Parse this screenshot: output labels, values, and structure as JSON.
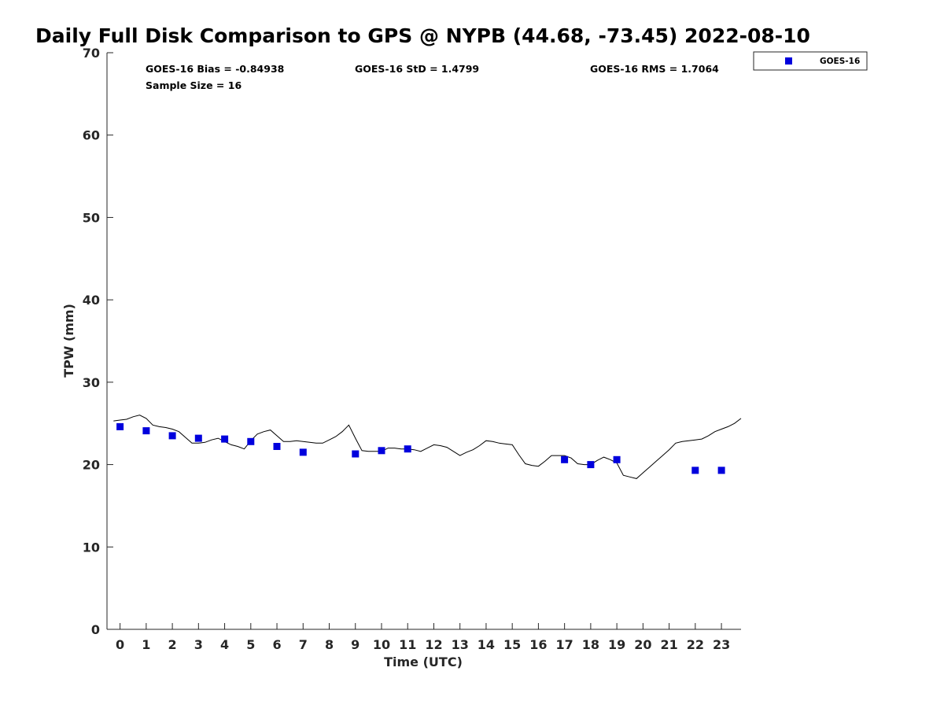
{
  "chart_data": {
    "type": "line",
    "title": "Daily Full Disk Comparison to GPS @ NYPB (44.68, -73.45) 2022-08-10",
    "xlabel": "Time (UTC)",
    "ylabel": "TPW (mm)",
    "xlim": [
      -0.5,
      23.75
    ],
    "ylim": [
      0,
      70
    ],
    "x_ticks": [
      "0",
      "1",
      "2",
      "3",
      "4",
      "5",
      "6",
      "7",
      "8",
      "9",
      "10",
      "11",
      "12",
      "13",
      "14",
      "15",
      "16",
      "17",
      "18",
      "19",
      "20",
      "21",
      "22",
      "23"
    ],
    "y_ticks": [
      "0",
      "10",
      "20",
      "30",
      "40",
      "50",
      "60",
      "70"
    ],
    "grid": false,
    "legend_position": "top-right, outside plot",
    "stats": {
      "bias": "GOES-16 Bias = -0.84938",
      "std": "GOES-16 StD = 1.4799",
      "rms": "GOES-16 RMS = 1.7064",
      "sample": "Sample Size = 16"
    },
    "legend": [
      {
        "label": "GOES-16",
        "marker": "square",
        "color": "#0000dd"
      }
    ],
    "series": [
      {
        "kind": "line",
        "color": "#000000",
        "x": [
          -0.25,
          0.0,
          0.25,
          0.5,
          0.75,
          1.0,
          1.25,
          1.5,
          1.75,
          2.0,
          2.25,
          2.5,
          2.75,
          3.0,
          3.25,
          3.5,
          3.75,
          4.0,
          4.25,
          4.5,
          4.75,
          5.0,
          5.25,
          5.5,
          5.75,
          6.0,
          6.25,
          6.5,
          6.75,
          7.0,
          7.25,
          7.5,
          7.75,
          8.0,
          8.25,
          8.5,
          8.75,
          9.0,
          9.25,
          9.5,
          9.75,
          10.0,
          10.25,
          10.5,
          10.75,
          11.0,
          11.25,
          11.5,
          11.75,
          12.0,
          12.25,
          12.5,
          12.75,
          13.0,
          13.25,
          13.5,
          13.75,
          14.0,
          14.25,
          14.5,
          14.75,
          15.0,
          15.25,
          15.5,
          15.75,
          16.0,
          16.25,
          16.5,
          16.75,
          17.0,
          17.25,
          17.5,
          17.75,
          18.0,
          18.25,
          18.5,
          18.75,
          19.0,
          19.25,
          19.5,
          19.75,
          20.0,
          20.25,
          20.5,
          20.75,
          21.0,
          21.25,
          21.5,
          21.75,
          22.0,
          22.25,
          22.5,
          22.75,
          23.0,
          23.25,
          23.5,
          23.75
        ],
        "values": [
          25.3,
          25.4,
          25.5,
          25.8,
          26.0,
          25.6,
          24.8,
          24.6,
          24.5,
          24.3,
          24.0,
          23.3,
          22.6,
          22.6,
          22.7,
          23.0,
          23.2,
          22.8,
          22.4,
          22.2,
          21.9,
          22.9,
          23.7,
          24.0,
          24.2,
          23.5,
          22.8,
          22.8,
          22.9,
          22.8,
          22.7,
          22.6,
          22.6,
          23.0,
          23.4,
          24.0,
          24.8,
          23.2,
          21.7,
          21.6,
          21.6,
          21.6,
          22.0,
          22.0,
          21.9,
          21.9,
          21.8,
          21.6,
          22.0,
          22.4,
          22.3,
          22.1,
          21.6,
          21.1,
          21.5,
          21.8,
          22.3,
          22.9,
          22.8,
          22.6,
          22.5,
          22.4,
          21.2,
          20.1,
          19.9,
          19.8,
          20.4,
          21.1,
          21.1,
          21.1,
          20.8,
          20.1,
          20.0,
          20.0,
          20.5,
          20.9,
          20.6,
          20.2,
          18.7,
          18.5,
          18.3,
          19.0,
          19.7,
          20.4,
          21.1,
          21.8,
          22.6,
          22.8,
          22.9,
          23.0,
          23.1,
          23.5,
          24.0,
          24.3,
          24.6,
          25.0,
          25.6
        ]
      },
      {
        "kind": "scatter",
        "name": "GOES-16",
        "color": "#0000dd",
        "x": [
          0,
          1,
          2,
          3,
          4,
          5,
          6,
          7,
          9,
          10,
          11,
          17,
          18,
          19,
          22,
          23
        ],
        "values": [
          24.6,
          24.1,
          23.5,
          23.2,
          23.1,
          22.8,
          22.2,
          21.5,
          21.3,
          21.7,
          21.9,
          20.6,
          20.0,
          20.6,
          19.3,
          19.3
        ]
      }
    ]
  }
}
